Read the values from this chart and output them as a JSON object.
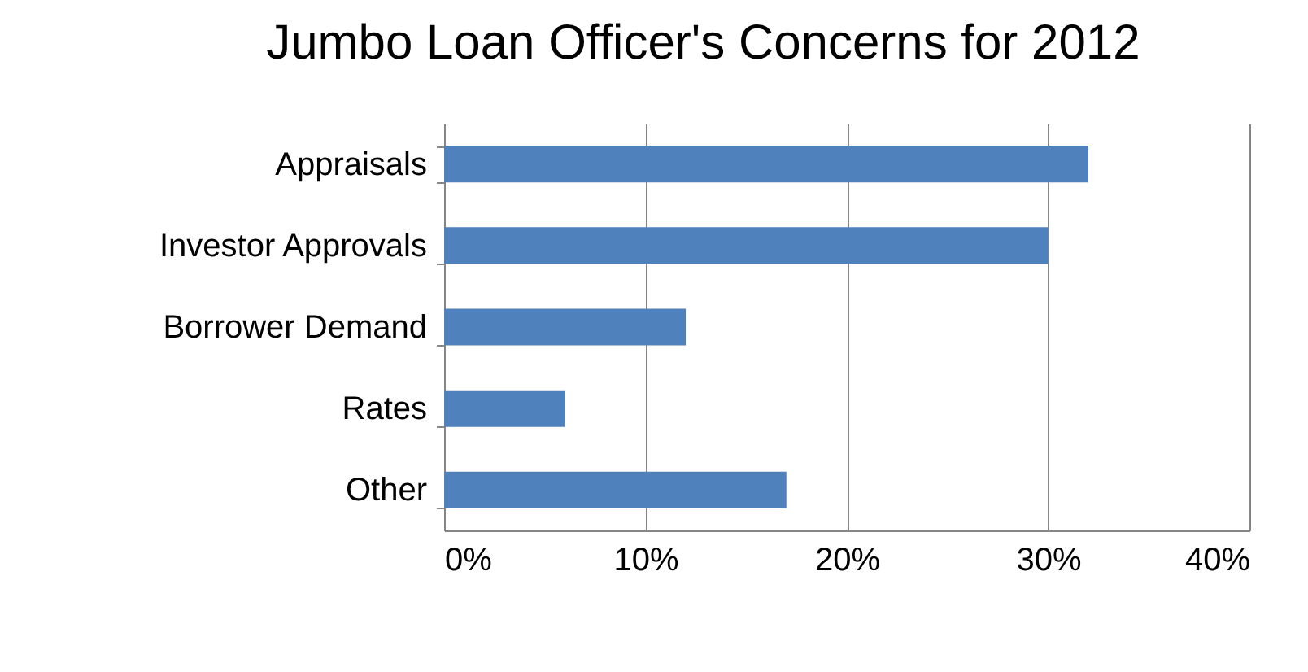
{
  "chart_data": {
    "type": "bar",
    "orientation": "horizontal",
    "title": "Jumbo Loan Officer's Concerns for 2012",
    "categories": [
      "Appraisals",
      "Investor Approvals",
      "Borrower Demand",
      "Rates",
      "Other"
    ],
    "values": [
      32,
      30,
      12,
      6,
      17
    ],
    "color": "#4f81bd",
    "xlim": [
      0,
      40
    ],
    "xticks": [
      {
        "value": 0,
        "label": "0%"
      },
      {
        "value": 10,
        "label": "10%"
      },
      {
        "value": 20,
        "label": "20%"
      },
      {
        "value": 30,
        "label": "30%"
      },
      {
        "value": 40,
        "label": "40%"
      }
    ],
    "grid": "x"
  }
}
